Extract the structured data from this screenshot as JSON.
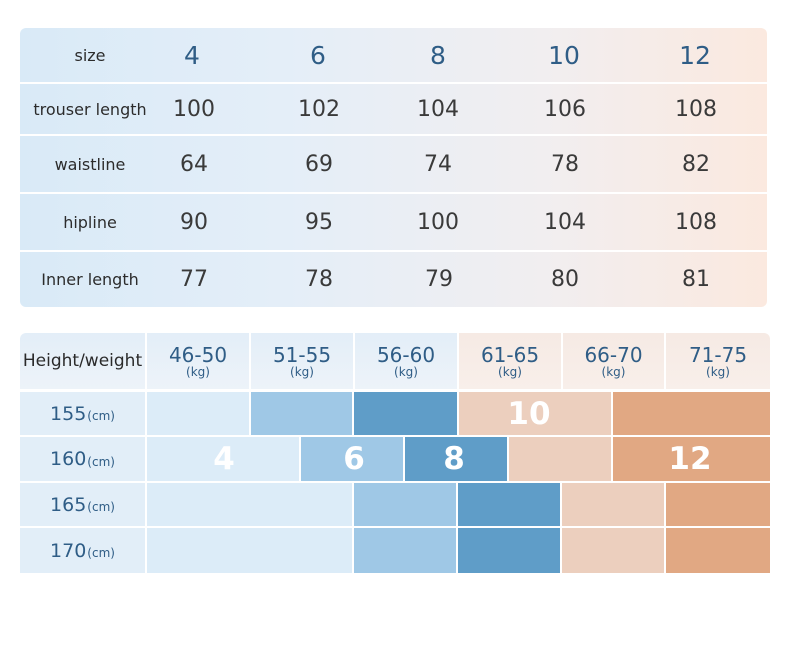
{
  "size_table": {
    "header_label": "size",
    "sizes": [
      "4",
      "6",
      "8",
      "10",
      "12"
    ],
    "rows": [
      {
        "label": "trouser length",
        "values": [
          "100",
          "102",
          "104",
          "106",
          "108"
        ]
      },
      {
        "label": "waistline",
        "values": [
          "64",
          "69",
          "74",
          "78",
          "82"
        ]
      },
      {
        "label": "hipline",
        "values": [
          "90",
          "95",
          "100",
          "104",
          "108"
        ]
      },
      {
        "label": "Inner length",
        "values": [
          "77",
          "78",
          "79",
          "80",
          "81"
        ]
      }
    ]
  },
  "fit_table": {
    "corner_label": "Height/weight",
    "weight_unit": "(kg)",
    "height_unit": "(cm)",
    "weights": [
      "46-50",
      "51-55",
      "56-60",
      "61-65",
      "66-70",
      "71-75"
    ],
    "heights": [
      "155",
      "160",
      "165",
      "170"
    ],
    "size_labels": {
      "s4": "4",
      "s6": "6",
      "s8": "8",
      "s10": "10",
      "s12": "12"
    }
  },
  "colors": {
    "blue_light": "#dcecf8",
    "blue_mid": "#9fc8e6",
    "blue_dark": "#5f9dc8",
    "peach_light": "#eccfbe",
    "peach_dark": "#e1a883",
    "header_text": "#2f5d86"
  }
}
